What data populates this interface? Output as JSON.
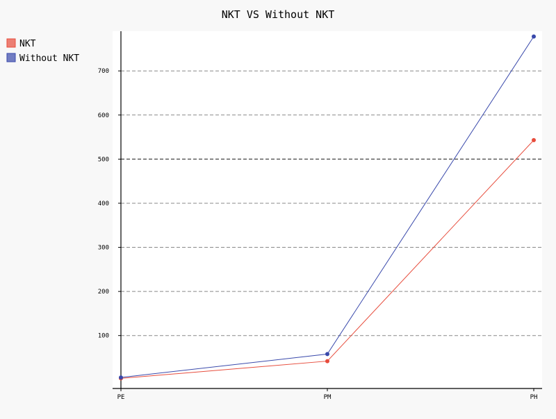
{
  "chart_data": {
    "type": "line",
    "title": "NKT VS Without NKT",
    "categories": [
      "PE",
      "PM",
      "PH"
    ],
    "series": [
      {
        "name": "NKT",
        "values": [
          3,
          42,
          543
        ],
        "color": "#e74c3c"
      },
      {
        "name": "Without NKT",
        "values": [
          5,
          58,
          778
        ],
        "color": "#3949ab"
      }
    ],
    "y_ticks": [
      100,
      200,
      300,
      400,
      500,
      600,
      700
    ],
    "ylim": [
      -20,
      790
    ],
    "grid": "horizontal dashed",
    "legend_position": "top-left"
  }
}
